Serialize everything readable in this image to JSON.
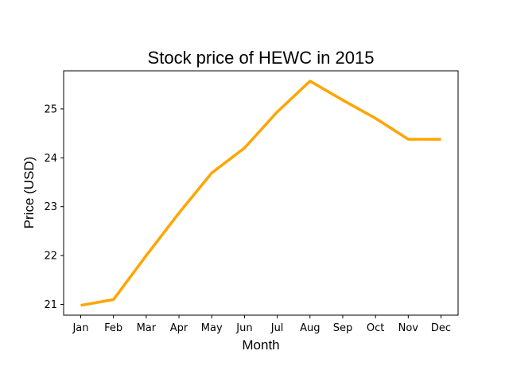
{
  "chart_data": {
    "type": "line",
    "title": "Stock price of HEWC in 2015",
    "xlabel": "Month",
    "ylabel": "Price (USD)",
    "categories": [
      "Jan",
      "Feb",
      "Mar",
      "Apr",
      "May",
      "Jun",
      "Jul",
      "Aug",
      "Sep",
      "Oct",
      "Nov",
      "Dec"
    ],
    "series": [
      {
        "values": [
          20.98,
          21.1,
          22.0,
          22.87,
          23.69,
          24.2,
          24.94,
          25.57,
          25.18,
          24.81,
          24.38,
          24.38
        ],
        "color": "#FFA500"
      }
    ],
    "yticks": [
      21,
      22,
      23,
      24,
      25
    ],
    "ylim": [
      20.78,
      25.78
    ],
    "grid": false,
    "legend": "none"
  }
}
